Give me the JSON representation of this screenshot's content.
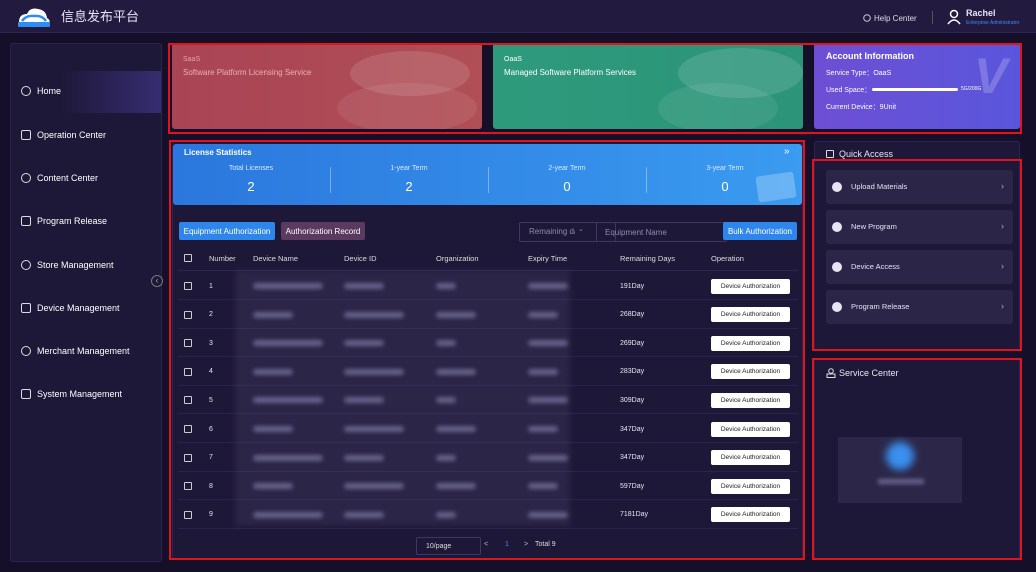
{
  "header": {
    "title": "信息发布平台",
    "help": "Help Center",
    "user": "Rachel",
    "role": "Enterprise Administrator"
  },
  "sidebar": [
    "Home",
    "Operation Center",
    "Content Center",
    "Program Release",
    "Store Management",
    "Device Management",
    "Merchant Management",
    "System Management"
  ],
  "cards": [
    {
      "tag": "SaaS",
      "text": "Software Platform Licensing Service"
    },
    {
      "tag": "OaaS",
      "text": "Managed Software Platform Services"
    }
  ],
  "account": {
    "title": "Account Information",
    "service_type": "Service Type：OaaS",
    "used_space": "Used Space：",
    "used_value": "5G/200G",
    "current_device": "Current Device：9Unit"
  },
  "license": {
    "title": "License Statistics",
    "stats": [
      {
        "label": "Total Licenses",
        "value": 2
      },
      {
        "label": "1-year Term",
        "value": 2
      },
      {
        "label": "2-year Term",
        "value": 0
      },
      {
        "label": "3-year Term",
        "value": 0
      }
    ]
  },
  "toolbar": {
    "tabs": [
      "Equipment Authorization",
      "Authorization Record"
    ],
    "filter": "Remaining days",
    "search": "Equipment Name",
    "bulk": "Bulk Authorization"
  },
  "table": {
    "columns": [
      "Number",
      "Device Name",
      "Device ID",
      "Organization",
      "Expiry Time",
      "Remaining Days",
      "Operation"
    ],
    "rows": [
      {
        "number": 1,
        "remaining": "191Day",
        "operation": "Device Authorization"
      },
      {
        "number": 2,
        "remaining": "268Day",
        "operation": "Device Authorization"
      },
      {
        "number": 3,
        "remaining": "269Day",
        "operation": "Device Authorization"
      },
      {
        "number": 4,
        "remaining": "283Day",
        "operation": "Device Authorization"
      },
      {
        "number": 5,
        "remaining": "309Day",
        "operation": "Device Authorization"
      },
      {
        "number": 6,
        "remaining": "347Day",
        "operation": "Device Authorization"
      },
      {
        "number": 7,
        "remaining": "347Day",
        "operation": "Device Authorization"
      },
      {
        "number": 8,
        "remaining": "597Day",
        "operation": "Device Authorization"
      },
      {
        "number": 9,
        "remaining": "7181Day",
        "operation": "Device Authorization"
      }
    ]
  },
  "pagination": {
    "page_size": "10/page",
    "prev": "<",
    "current": 1,
    "next": ">",
    "total": "Total 9"
  },
  "quick_access": {
    "title": "Quick Access",
    "items": [
      "Upload Materials",
      "New Program",
      "Device Access",
      "Program Release"
    ]
  },
  "service_center": {
    "title": "Service Center"
  }
}
